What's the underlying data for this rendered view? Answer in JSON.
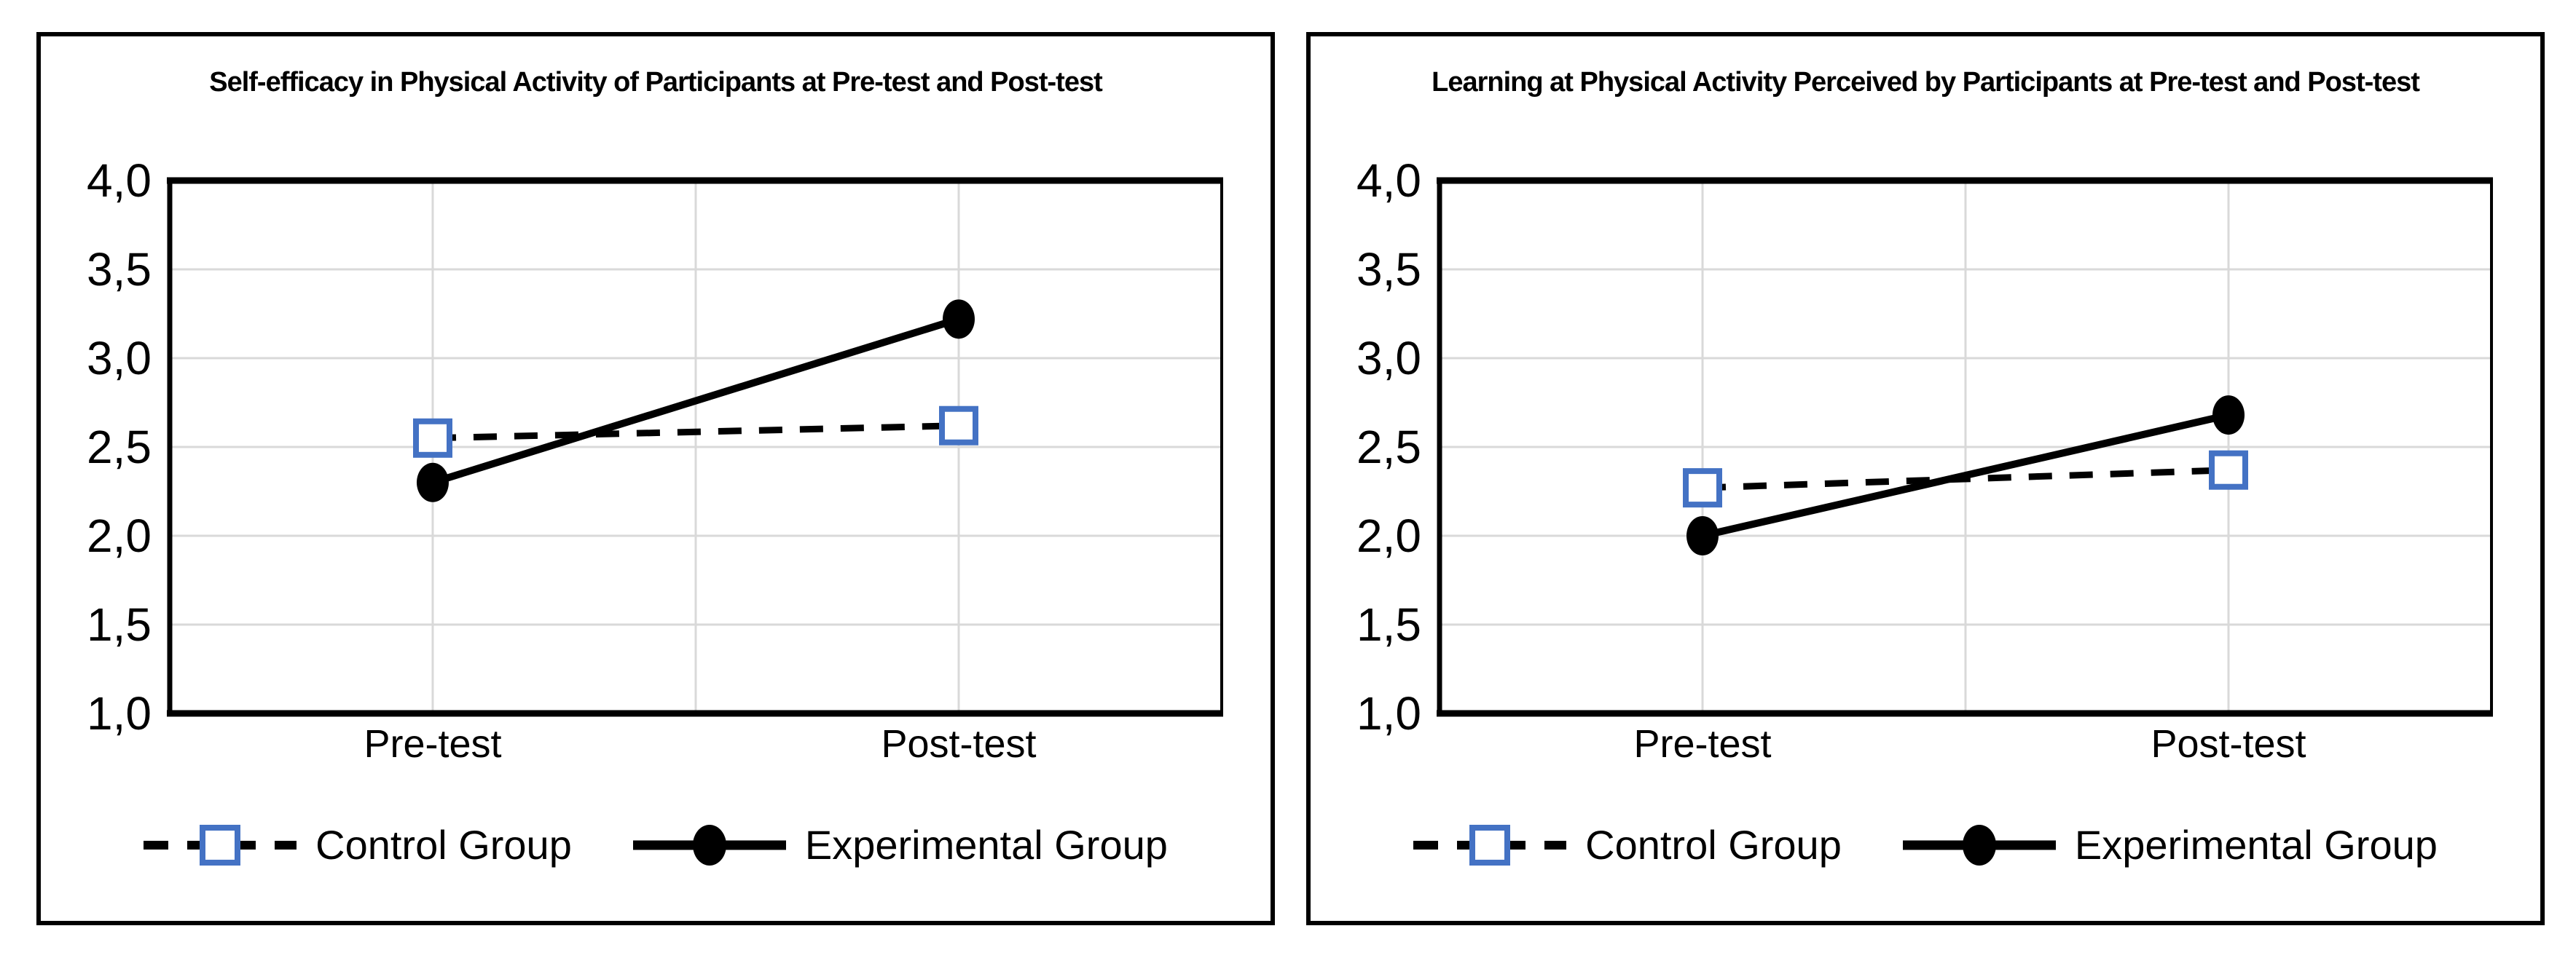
{
  "figure": {
    "background": "#ffffff",
    "panel_border_color": "#000000"
  },
  "colors": {
    "control_marker": "#4472C4",
    "series_line": "#000000",
    "gridline": "#D9D9D9",
    "plot_border": "#000000",
    "text": "#000000"
  },
  "chart_data": [
    {
      "type": "line",
      "title": "Self-efficacy in Physical Activity of Participants at Pre-test and Post-test",
      "categories": [
        "Pre-test",
        "Post-test"
      ],
      "series": [
        {
          "name": "Control Group",
          "values": [
            2.55,
            2.62
          ],
          "style": "dashed",
          "marker": "open-square",
          "marker_color": "#4472C4",
          "line_color": "#000000"
        },
        {
          "name": "Experimental Group",
          "values": [
            2.3,
            3.22
          ],
          "style": "solid",
          "marker": "filled-circle",
          "marker_color": "#000000",
          "line_color": "#000000"
        }
      ],
      "ylim": [
        1.0,
        4.0
      ],
      "y_ticks": [
        {
          "label": "4,0",
          "value": 4.0
        },
        {
          "label": "3,5",
          "value": 3.5
        },
        {
          "label": "3,0",
          "value": 3.0
        },
        {
          "label": "2,5",
          "value": 2.5
        },
        {
          "label": "2,0",
          "value": 2.0
        },
        {
          "label": "1,5",
          "value": 1.5
        },
        {
          "label": "1,0",
          "value": 1.0
        }
      ],
      "decimal_separator": ",",
      "grid": true,
      "legend_position": "bottom"
    },
    {
      "type": "line",
      "title": "Learning at Physical Activity Perceived by Participants at Pre-test and Post-test",
      "categories": [
        "Pre-test",
        "Post-test"
      ],
      "series": [
        {
          "name": "Control Group",
          "values": [
            2.27,
            2.37
          ],
          "style": "dashed",
          "marker": "open-square",
          "marker_color": "#4472C4",
          "line_color": "#000000"
        },
        {
          "name": "Experimental Group",
          "values": [
            2.0,
            2.68
          ],
          "style": "solid",
          "marker": "filled-circle",
          "marker_color": "#000000",
          "line_color": "#000000"
        }
      ],
      "ylim": [
        1.0,
        4.0
      ],
      "y_ticks": [
        {
          "label": "4,0",
          "value": 4.0
        },
        {
          "label": "3,5",
          "value": 3.5
        },
        {
          "label": "3,0",
          "value": 3.0
        },
        {
          "label": "2,5",
          "value": 2.5
        },
        {
          "label": "2,0",
          "value": 2.0
        },
        {
          "label": "1,5",
          "value": 1.5
        },
        {
          "label": "1,0",
          "value": 1.0
        }
      ],
      "decimal_separator": ",",
      "grid": true,
      "legend_position": "bottom"
    }
  ]
}
